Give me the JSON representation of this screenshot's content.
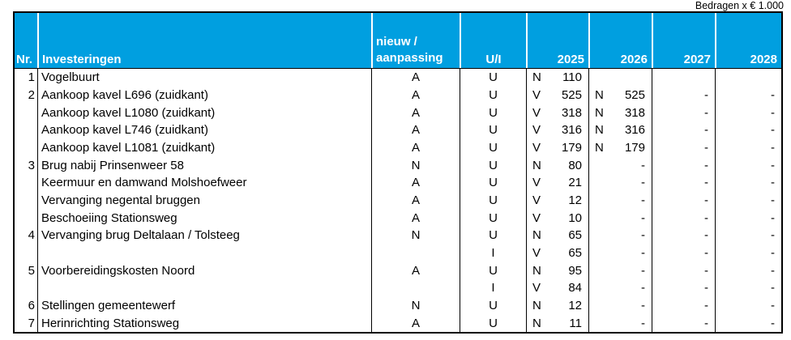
{
  "note": "Bedragen x € 1.000",
  "colors": {
    "header_bg": "#009FE0",
    "header_text": "#FFFFFF",
    "body_text": "#000000",
    "border": "#000000"
  },
  "table": {
    "headers": {
      "nr": "Nr.",
      "name": "Investeringen",
      "type_line1": "nieuw /",
      "type_line2": "aanpassing",
      "ui": "U/I",
      "years": [
        "2025",
        "2026",
        "2027",
        "2028"
      ]
    },
    "rows": [
      {
        "nr": "1",
        "name": "Vogelbuurt",
        "type": "A",
        "ui": "U",
        "years": [
          {
            "p": "N",
            "v": "110"
          },
          {
            "p": "",
            "v": ""
          },
          {
            "p": "",
            "v": ""
          },
          {
            "p": "",
            "v": ""
          }
        ]
      },
      {
        "nr": "2",
        "name": "Aankoop kavel L696 (zuidkant)",
        "type": "A",
        "ui": "U",
        "years": [
          {
            "p": "V",
            "v": "525"
          },
          {
            "p": "N",
            "v": "525"
          },
          {
            "p": "",
            "v": "-"
          },
          {
            "p": "",
            "v": "-"
          }
        ]
      },
      {
        "nr": "",
        "name": "Aankoop kavel L1080 (zuidkant)",
        "type": "A",
        "ui": "U",
        "years": [
          {
            "p": "V",
            "v": "318"
          },
          {
            "p": "N",
            "v": "318"
          },
          {
            "p": "",
            "v": "-"
          },
          {
            "p": "",
            "v": "-"
          }
        ]
      },
      {
        "nr": "",
        "name": "Aankoop kavel L746 (zuidkant)",
        "type": "A",
        "ui": "U",
        "years": [
          {
            "p": "V",
            "v": "316"
          },
          {
            "p": "N",
            "v": "316"
          },
          {
            "p": "",
            "v": "-"
          },
          {
            "p": "",
            "v": "-"
          }
        ]
      },
      {
        "nr": "",
        "name": "Aankoop kavel L1081 (zuidkant)",
        "type": "A",
        "ui": "U",
        "years": [
          {
            "p": "V",
            "v": "179"
          },
          {
            "p": "N",
            "v": "179"
          },
          {
            "p": "",
            "v": "-"
          },
          {
            "p": "",
            "v": "-"
          }
        ]
      },
      {
        "nr": "3",
        "name": "Brug nabij Prinsenweer 58",
        "type": "N",
        "ui": "U",
        "years": [
          {
            "p": "N",
            "v": "80"
          },
          {
            "p": "",
            "v": "-"
          },
          {
            "p": "",
            "v": "-"
          },
          {
            "p": "",
            "v": "-"
          }
        ]
      },
      {
        "nr": "",
        "name": "Keermuur en damwand Molshoefweer",
        "type": "A",
        "ui": "U",
        "years": [
          {
            "p": "V",
            "v": "21"
          },
          {
            "p": "",
            "v": "-"
          },
          {
            "p": "",
            "v": "-"
          },
          {
            "p": "",
            "v": "-"
          }
        ]
      },
      {
        "nr": "",
        "name": "Vervanging negental bruggen",
        "type": "A",
        "ui": "U",
        "years": [
          {
            "p": "V",
            "v": "12"
          },
          {
            "p": "",
            "v": "-"
          },
          {
            "p": "",
            "v": "-"
          },
          {
            "p": "",
            "v": "-"
          }
        ]
      },
      {
        "nr": "",
        "name": "Beschoeiing Stationsweg",
        "type": "A",
        "ui": "U",
        "years": [
          {
            "p": "V",
            "v": "10"
          },
          {
            "p": "",
            "v": "-"
          },
          {
            "p": "",
            "v": "-"
          },
          {
            "p": "",
            "v": "-"
          }
        ]
      },
      {
        "nr": "4",
        "name": "Vervanging brug Deltalaan / Tolsteeg",
        "type": "N",
        "ui": "U",
        "years": [
          {
            "p": "N",
            "v": "65"
          },
          {
            "p": "",
            "v": "-"
          },
          {
            "p": "",
            "v": "-"
          },
          {
            "p": "",
            "v": "-"
          }
        ]
      },
      {
        "nr": "",
        "name": "",
        "type": "",
        "ui": "I",
        "years": [
          {
            "p": "V",
            "v": "65"
          },
          {
            "p": "",
            "v": "-"
          },
          {
            "p": "",
            "v": "-"
          },
          {
            "p": "",
            "v": "-"
          }
        ]
      },
      {
        "nr": "5",
        "name": "Voorbereidingskosten Noord",
        "type": "A",
        "ui": "U",
        "years": [
          {
            "p": "N",
            "v": "95"
          },
          {
            "p": "",
            "v": "-"
          },
          {
            "p": "",
            "v": "-"
          },
          {
            "p": "",
            "v": "-"
          }
        ]
      },
      {
        "nr": "",
        "name": "",
        "type": "",
        "ui": "I",
        "years": [
          {
            "p": "V",
            "v": "84"
          },
          {
            "p": "",
            "v": "-"
          },
          {
            "p": "",
            "v": "-"
          },
          {
            "p": "",
            "v": "-"
          }
        ]
      },
      {
        "nr": "6",
        "name": "Stellingen gemeentewerf",
        "type": "N",
        "ui": "U",
        "years": [
          {
            "p": "N",
            "v": "12"
          },
          {
            "p": "",
            "v": "-"
          },
          {
            "p": "",
            "v": "-"
          },
          {
            "p": "",
            "v": "-"
          }
        ]
      },
      {
        "nr": "7",
        "name": "Herinrichting Stationsweg",
        "type": "A",
        "ui": "U",
        "years": [
          {
            "p": "N",
            "v": "11"
          },
          {
            "p": "",
            "v": "-"
          },
          {
            "p": "",
            "v": "-"
          },
          {
            "p": "",
            "v": "-"
          }
        ]
      }
    ]
  }
}
